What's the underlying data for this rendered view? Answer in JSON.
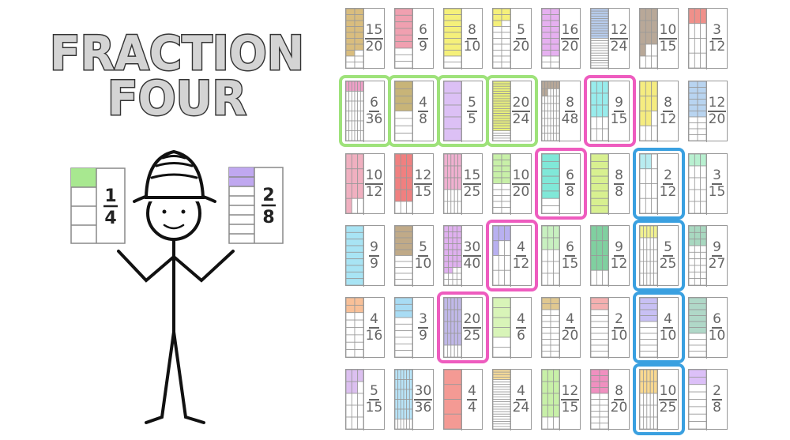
{
  "title": {
    "line1": "FRACTION",
    "line2": "FOUR"
  },
  "figure": {
    "left_card": {
      "numerator": 1,
      "denominator": 4,
      "color": "#a8e890"
    },
    "right_card": {
      "numerator": 2,
      "denominator": 8,
      "color": "#c0a8f0"
    }
  },
  "board": {
    "rows": [
      [
        {
          "n": 15,
          "d": 20,
          "c": "#d9bd7e"
        },
        {
          "n": 6,
          "d": 9,
          "c": "#f0a0b0"
        },
        {
          "n": 8,
          "d": 10,
          "c": "#f5f07a"
        },
        {
          "n": 5,
          "d": 20,
          "c": "#f5f07a"
        },
        {
          "n": 16,
          "d": 20,
          "c": "#e6b0f0"
        },
        {
          "n": 12,
          "d": 24,
          "c": "#b8cef0"
        },
        {
          "n": 10,
          "d": 15,
          "c": "#b8a898"
        },
        {
          "n": 3,
          "d": 12,
          "c": "#f0908a"
        }
      ],
      [
        {
          "n": 6,
          "d": 36,
          "c": "#f0a0c8"
        },
        {
          "n": 4,
          "d": 8,
          "c": "#c8b478"
        },
        {
          "n": 5,
          "d": 5,
          "c": "#dcc0f5"
        },
        {
          "n": 20,
          "d": 24,
          "c": "#e8f07a"
        },
        {
          "n": 8,
          "d": 48,
          "c": "#b8a898"
        },
        {
          "n": 9,
          "d": 15,
          "c": "#98ecec"
        },
        {
          "n": 8,
          "d": 12,
          "c": "#f5ec80"
        },
        {
          "n": 12,
          "d": 20,
          "c": "#b8d4f0"
        }
      ],
      [
        {
          "n": 10,
          "d": 12,
          "c": "#f0b0c0"
        },
        {
          "n": 12,
          "d": 15,
          "c": "#f08080"
        },
        {
          "n": 15,
          "d": 25,
          "c": "#f0b0d0"
        },
        {
          "n": 10,
          "d": 20,
          "c": "#c8f0a8"
        },
        {
          "n": 6,
          "d": 8,
          "c": "#80e8d8"
        },
        {
          "n": 8,
          "d": 8,
          "c": "#d8f090"
        },
        {
          "n": 2,
          "d": 12,
          "c": "#b8ecf0"
        },
        {
          "n": 3,
          "d": 15,
          "c": "#b8f0d0"
        }
      ],
      [
        {
          "n": 9,
          "d": 9,
          "c": "#a8e4f4"
        },
        {
          "n": 5,
          "d": 10,
          "c": "#c0aa88"
        },
        {
          "n": 30,
          "d": 40,
          "c": "#e0b0f0"
        },
        {
          "n": 4,
          "d": 12,
          "c": "#b8b0f0"
        },
        {
          "n": 6,
          "d": 15,
          "c": "#c8f0c0"
        },
        {
          "n": 9,
          "d": 12,
          "c": "#80d0a0"
        },
        {
          "n": 5,
          "d": 25,
          "c": "#f0f090"
        },
        {
          "n": 9,
          "d": 27,
          "c": "#a8d8c0"
        }
      ],
      [
        {
          "n": 4,
          "d": 16,
          "c": "#f8c098"
        },
        {
          "n": 3,
          "d": 9,
          "c": "#a8dcf4"
        },
        {
          "n": 20,
          "d": 25,
          "c": "#c0b8e8"
        },
        {
          "n": 4,
          "d": 6,
          "c": "#d8f4b8"
        },
        {
          "n": 4,
          "d": 20,
          "c": "#e0c890"
        },
        {
          "n": 2,
          "d": 10,
          "c": "#f4b0b0"
        },
        {
          "n": 4,
          "d": 10,
          "c": "#c8c0f4"
        },
        {
          "n": 6,
          "d": 10,
          "c": "#b0d8c8"
        }
      ],
      [
        {
          "n": 5,
          "d": 15,
          "c": "#dcc0f0"
        },
        {
          "n": 30,
          "d": 36,
          "c": "#b8e4f8"
        },
        {
          "n": 4,
          "d": 4,
          "c": "#f49a94"
        },
        {
          "n": 4,
          "d": 24,
          "c": "#f8dc98"
        },
        {
          "n": 12,
          "d": 15,
          "c": "#c8f0a8"
        },
        {
          "n": 8,
          "d": 20,
          "c": "#f090c0"
        },
        {
          "n": 10,
          "d": 25,
          "c": "#f8d890"
        },
        {
          "n": 2,
          "d": 8,
          "c": "#dcc0f8"
        }
      ]
    ],
    "highlights": [
      {
        "color": "#9ee27a",
        "cells": [
          [
            1,
            0
          ],
          [
            1,
            1
          ],
          [
            1,
            2
          ],
          [
            1,
            3
          ]
        ]
      },
      {
        "color": "#ee5cbf",
        "cells": [
          [
            1,
            5
          ],
          [
            2,
            4
          ],
          [
            3,
            3
          ],
          [
            4,
            2
          ]
        ]
      },
      {
        "color": "#3aa0e0",
        "cells": [
          [
            2,
            6
          ],
          [
            3,
            6
          ],
          [
            4,
            6
          ],
          [
            5,
            6
          ]
        ]
      }
    ]
  }
}
